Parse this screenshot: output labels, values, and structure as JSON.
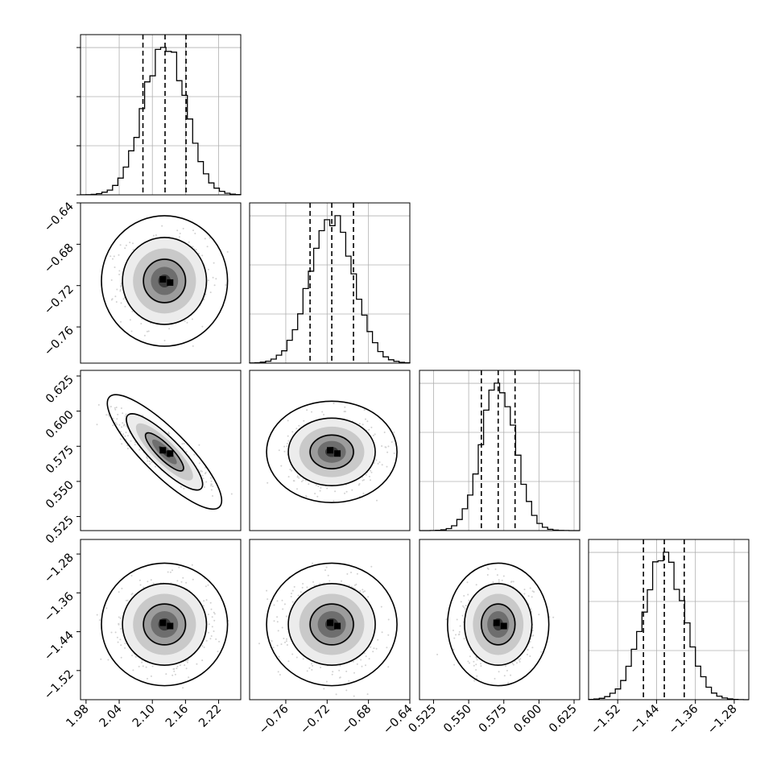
{
  "chart_data": {
    "type": "corner",
    "title": "",
    "ndim": 4,
    "parameters": [
      {
        "label": "",
        "range": [
          1.97,
          2.26
        ],
        "ticks": [
          "1.98",
          "2.04",
          "2.10",
          "2.16",
          "2.22"
        ],
        "quantiles": [
          2.083,
          2.123,
          2.161
        ],
        "mean": 2.122,
        "std": 0.038
      },
      {
        "label": "",
        "range": [
          -0.795,
          -0.64
        ],
        "ticks": [
          "−0.76",
          "−0.72",
          "−0.68",
          "−0.64"
        ],
        "quantiles": [
          -0.7365,
          -0.7155,
          -0.6945
        ],
        "mean": -0.7155,
        "std": 0.021
      },
      {
        "label": "",
        "range": [
          0.515,
          0.629
        ],
        "ticks": [
          "0.525",
          "0.550",
          "0.575",
          "0.600",
          "0.625"
        ],
        "quantiles": [
          0.559,
          0.571,
          0.583
        ],
        "mean": 0.571,
        "std": 0.012
      },
      {
        "label": "",
        "range": [
          -1.58,
          -1.25
        ],
        "ticks": [
          "−1.52",
          "−1.44",
          "−1.36",
          "−1.28"
        ],
        "quantiles": [
          -1.467,
          -1.424,
          -1.383
        ],
        "mean": -1.425,
        "std": 0.042
      }
    ],
    "y_tick_labels_left": [
      [],
      [
        "−0.64",
        "−0.68",
        "−0.72",
        "−0.76"
      ],
      [
        "0.625",
        "0.600",
        "0.575",
        "0.550",
        "0.525"
      ],
      [
        "−1.28",
        "−1.36",
        "−1.44",
        "−1.52"
      ]
    ],
    "correlations": {
      "2,0": -0.85,
      "1,0": 0.0,
      "2,1": 0.0,
      "3,0": 0.0,
      "3,1": 0.0,
      "3,2": 0.0
    },
    "histogram_bins": 30,
    "contour_levels": [
      0.393,
      0.865,
      0.989
    ],
    "grid": true,
    "legend": "none"
  }
}
